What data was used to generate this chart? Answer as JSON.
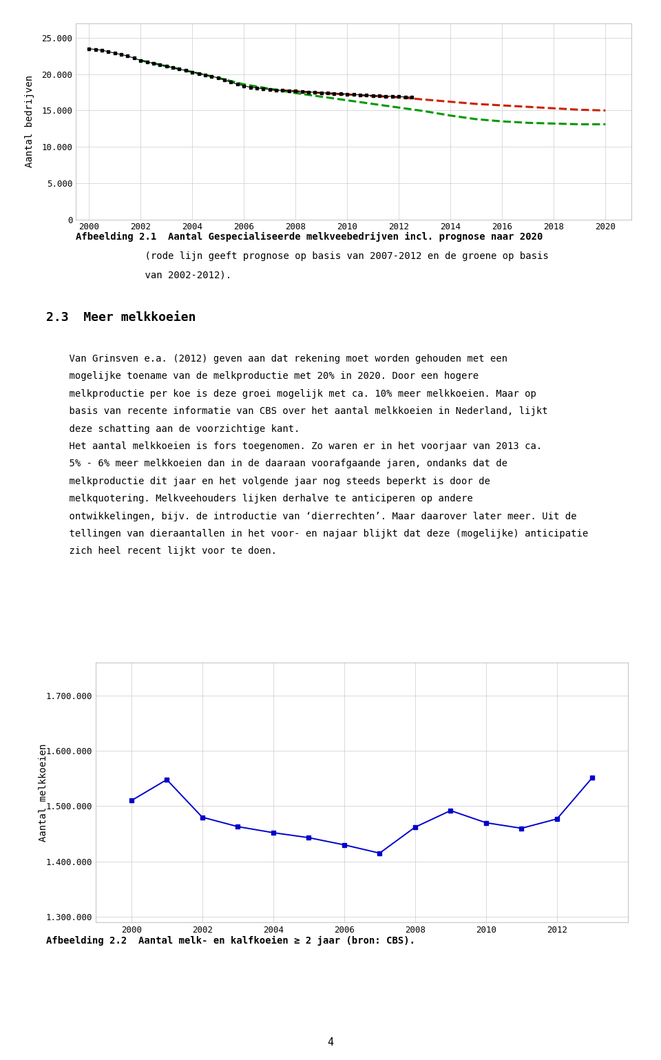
{
  "fig_width": 9.6,
  "fig_height": 15.39,
  "background_color": "#ffffff",
  "chart1": {
    "ylabel": "Aantal bedrijven",
    "xlim": [
      1999.5,
      2021
    ],
    "ylim": [
      0,
      27000
    ],
    "yticks": [
      0,
      5000,
      10000,
      15000,
      20000,
      25000
    ],
    "ytick_labels": [
      "0",
      "5.000",
      "10.000",
      "15.000",
      "20.000",
      "25.000"
    ],
    "xticks": [
      2000,
      2002,
      2004,
      2006,
      2008,
      2010,
      2012,
      2014,
      2016,
      2018,
      2020
    ],
    "black_line_x": [
      2000,
      2000.25,
      2000.5,
      2000.75,
      2001,
      2001.25,
      2001.5,
      2001.75,
      2002,
      2002.25,
      2002.5,
      2002.75,
      2003,
      2003.25,
      2003.5,
      2003.75,
      2004,
      2004.25,
      2004.5,
      2004.75,
      2005,
      2005.25,
      2005.5,
      2005.75,
      2006,
      2006.25,
      2006.5,
      2006.75,
      2007,
      2007.25,
      2007.5,
      2007.75,
      2008,
      2008.25,
      2008.5,
      2008.75,
      2009,
      2009.25,
      2009.5,
      2009.75,
      2010,
      2010.25,
      2010.5,
      2010.75,
      2011,
      2011.25,
      2011.5,
      2011.75,
      2012,
      2012.25,
      2012.5
    ],
    "black_line_y": [
      23500,
      23400,
      23300,
      23100,
      22900,
      22700,
      22500,
      22200,
      21900,
      21700,
      21500,
      21300,
      21100,
      20900,
      20700,
      20500,
      20300,
      20100,
      19900,
      19700,
      19500,
      19200,
      18900,
      18600,
      18400,
      18200,
      18100,
      18000,
      17900,
      17800,
      17750,
      17700,
      17650,
      17600,
      17550,
      17500,
      17450,
      17400,
      17350,
      17300,
      17250,
      17200,
      17150,
      17100,
      17050,
      17000,
      16970,
      16940,
      16900,
      16870,
      16840
    ],
    "red_dashed_x": [
      2007,
      2008,
      2009,
      2010,
      2011,
      2012,
      2013,
      2014,
      2015,
      2016,
      2017,
      2018,
      2019,
      2020
    ],
    "red_dashed_y": [
      17900,
      17650,
      17400,
      17200,
      17000,
      16800,
      16500,
      16200,
      15900,
      15700,
      15500,
      15300,
      15100,
      15000
    ],
    "red_color": "#cc2200",
    "green_dashed_x": [
      2002,
      2003,
      2004,
      2005,
      2006,
      2007,
      2008,
      2009,
      2010,
      2011,
      2012,
      2013,
      2014,
      2015,
      2016,
      2017,
      2018,
      2019,
      2020
    ],
    "green_dashed_y": [
      21900,
      21100,
      20300,
      19500,
      18600,
      18000,
      17400,
      16900,
      16400,
      15900,
      15400,
      14900,
      14300,
      13800,
      13500,
      13300,
      13200,
      13100,
      13100
    ],
    "green_color": "#009900"
  },
  "caption1_line1": "Afbeelding 2.1  Aantal Gespecialiseerde melkveebedrijven incl. prognose naar 2020",
  "caption1_line2": "            (rode lijn geeft prognose op basis van 2007-2012 en de groene op basis",
  "caption1_line3": "            van 2002-2012).",
  "section_title": "2.3  Meer melkkoeien",
  "para1_lines": [
    "    Van Grinsven e.a. (2012) geven aan dat rekening moet worden gehouden met een",
    "    mogelijke toename van de melkproductie met 20% in 2020. Door een hogere",
    "    melkproductie per koe is deze groei mogelijk met ca. 10% meer melkkoeien. Maar op",
    "    basis van recente informatie van CBS over het aantal melkkoeien in Nederland, lijkt",
    "    deze schatting aan de voorzichtige kant."
  ],
  "para2_lines": [
    "    Het aantal melkkoeien is fors toegenomen. Zo waren er in het voorjaar van 2013 ca.",
    "    5% - 6% meer melkkoeien dan in de daaraan voorafgaande jaren, ondanks dat de",
    "    melkproductie dit jaar en het volgende jaar nog steeds beperkt is door de",
    "    melkquotering. Melkveehouders lijken derhalve te anticiperen op andere",
    "    ontwikkelingen, bijv. de introductie van ‘dierrechten’. Maar daarover later meer. Uit de",
    "    tellingen van dieraantallen in het voor- en najaar blijkt dat deze (mogelijke) anticipatie",
    "    zich heel recent lijkt voor te doen."
  ],
  "chart2": {
    "ylabel": "Aantal melkkoeien",
    "xlim": [
      1999,
      2014
    ],
    "ylim": [
      1290000,
      1760000
    ],
    "yticks": [
      1300000,
      1400000,
      1500000,
      1600000,
      1700000
    ],
    "ytick_labels": [
      "1.300.000",
      "1.400.000",
      "1.500.000",
      "1.600.000",
      "1.700.000"
    ],
    "xticks": [
      2000,
      2002,
      2004,
      2006,
      2008,
      2010,
      2012
    ],
    "line_x": [
      2000,
      2001,
      2002,
      2003,
      2004,
      2005,
      2006,
      2007,
      2008,
      2009,
      2010,
      2011,
      2012,
      2013
    ],
    "line_y": [
      1510000,
      1548000,
      1480000,
      1463000,
      1452000,
      1443000,
      1430000,
      1415000,
      1462000,
      1492000,
      1470000,
      1460000,
      1477000,
      1552000
    ],
    "line_color": "#0000cc"
  },
  "caption2": "Afbeelding 2.2  Aantal melk- en kalfkoeien ≥ 2 jaar (bron: CBS).",
  "page_number": "4",
  "font_size_tick": 9,
  "font_size_axis_label": 10,
  "font_size_caption": 10,
  "font_size_section": 13,
  "font_size_body": 10
}
